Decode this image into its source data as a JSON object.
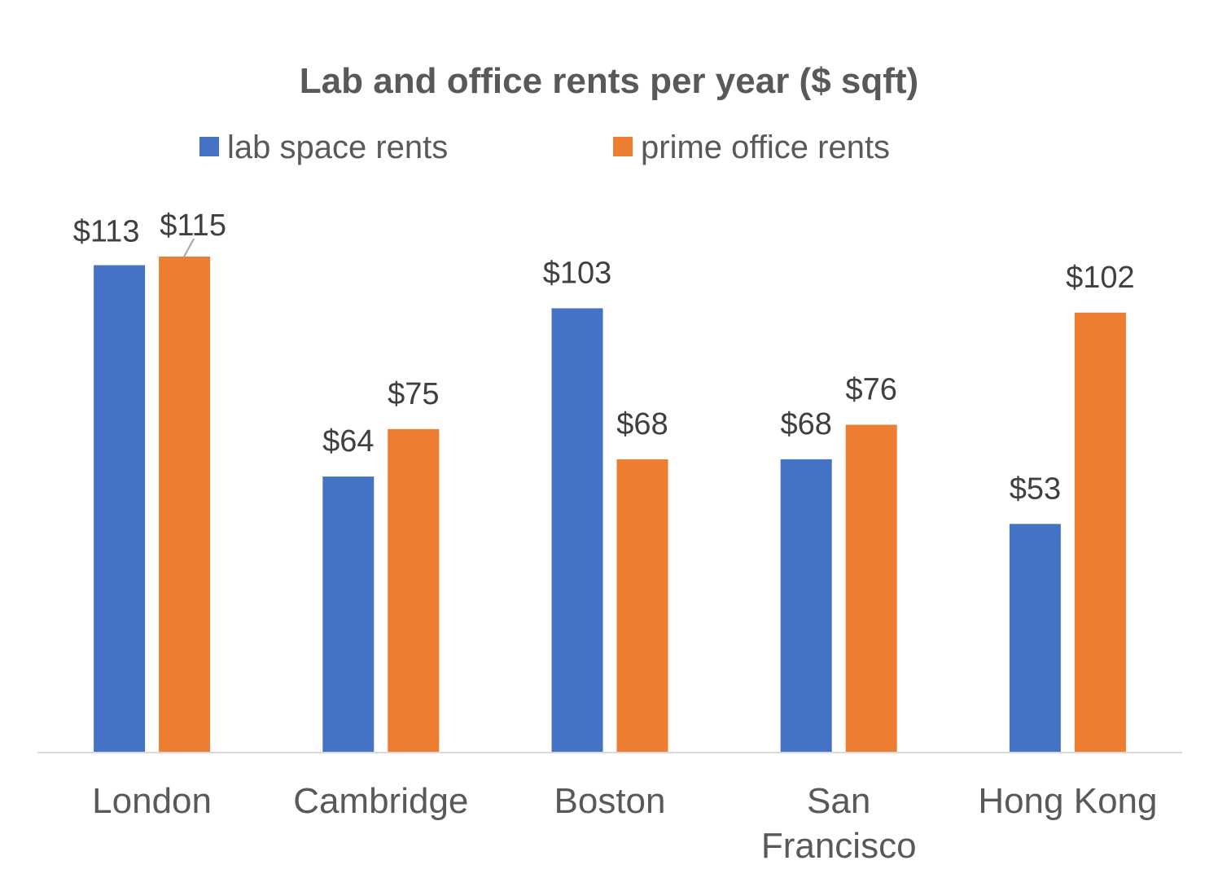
{
  "chart_data": {
    "type": "bar",
    "title": "Lab and office rents per year ($ sqft)",
    "categories": [
      [
        "London"
      ],
      [
        "Cambridge"
      ],
      [
        "Boston"
      ],
      [
        "San",
        "Francisco"
      ],
      [
        "Hong Kong"
      ]
    ],
    "series": [
      {
        "name": "lab space rents",
        "color": "#4472C4",
        "values": [
          113,
          64,
          103,
          68,
          53
        ],
        "labels": [
          "$113",
          "$64",
          "$103",
          "$68",
          "$53"
        ]
      },
      {
        "name": "prime office rents",
        "color": "#ED7D31",
        "values": [
          115,
          75,
          68,
          76,
          102
        ],
        "labels": [
          "$115",
          "$75",
          "$68",
          "$76",
          "$102"
        ]
      }
    ],
    "ylim": [
      0,
      115
    ],
    "grid": false,
    "legend": "top",
    "data_labels": true
  }
}
